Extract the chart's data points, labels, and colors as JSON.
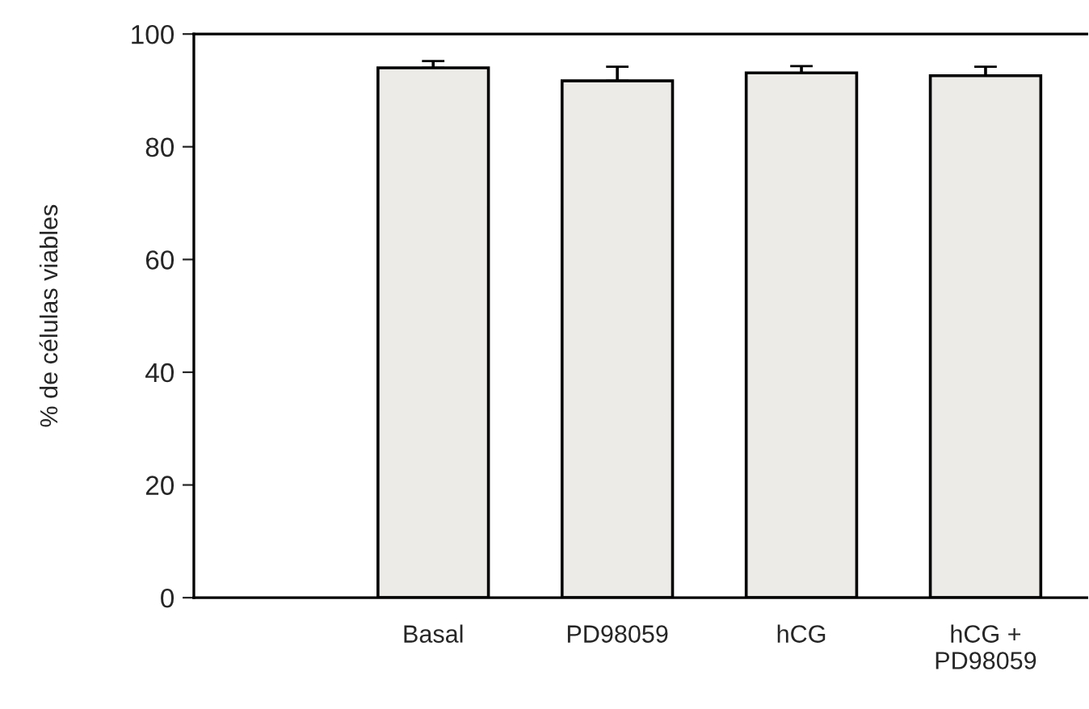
{
  "chart_data": {
    "type": "bar",
    "ylabel": "% de células viables",
    "categories": [
      "Basal",
      "PD98059",
      "hCG",
      "hCG +\nPD98059"
    ],
    "values": [
      94,
      91.7,
      93.1,
      92.6
    ],
    "errors": [
      [
        94,
        95.2
      ],
      [
        91.7,
        94.2
      ],
      [
        93.1,
        94.3
      ],
      [
        92.6,
        94.2
      ]
    ],
    "color": "#ecebe8",
    "ylim": [
      0,
      100
    ],
    "yticks": [
      0,
      20,
      40,
      60,
      80,
      100
    ],
    "grid": false
  }
}
